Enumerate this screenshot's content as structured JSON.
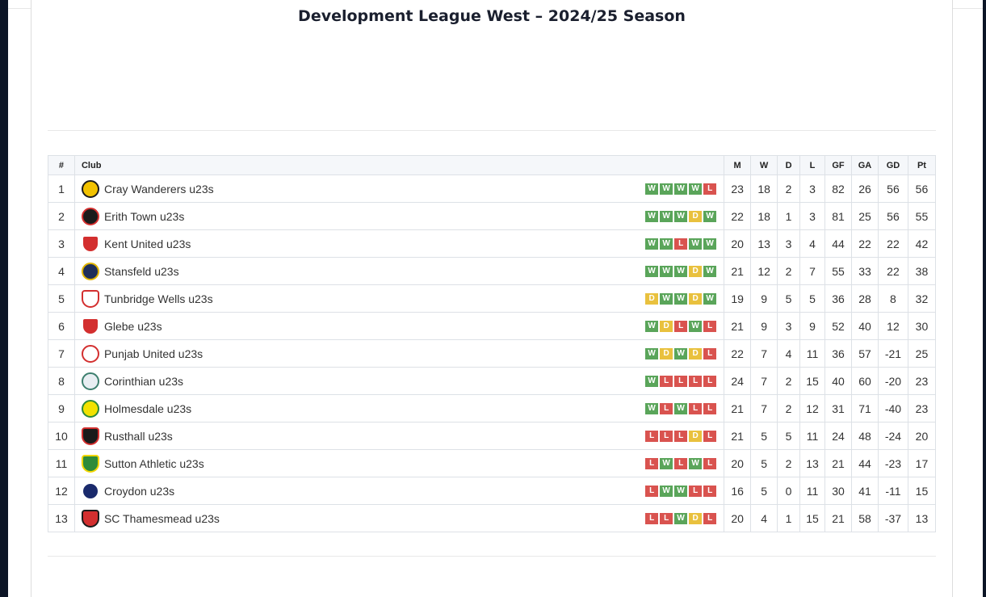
{
  "page": {
    "title": "Development League West – 2024/25 Season"
  },
  "table": {
    "headers": {
      "pos": "#",
      "club": "Club",
      "m": "M",
      "w": "W",
      "d": "D",
      "l": "L",
      "gf": "GF",
      "ga": "GA",
      "gd": "GD",
      "pt": "Pt"
    },
    "rows": [
      {
        "pos": "1",
        "club": "Cray Wanderers u23s",
        "form": [
          "W",
          "W",
          "W",
          "W",
          "L"
        ],
        "m": "23",
        "w": "18",
        "d": "2",
        "l": "3",
        "gf": "82",
        "ga": "26",
        "gd": "56",
        "pt": "56",
        "crest_color": "#f2c200",
        "crest_accent": "#1b1b1b"
      },
      {
        "pos": "2",
        "club": "Erith Town u23s",
        "form": [
          "W",
          "W",
          "W",
          "D",
          "W"
        ],
        "m": "22",
        "w": "18",
        "d": "1",
        "l": "3",
        "gf": "81",
        "ga": "25",
        "gd": "56",
        "pt": "55",
        "crest_color": "#1b1b1b",
        "crest_accent": "#d32f2f"
      },
      {
        "pos": "3",
        "club": "Kent United u23s",
        "form": [
          "W",
          "W",
          "L",
          "W",
          "W"
        ],
        "m": "20",
        "w": "13",
        "d": "3",
        "l": "4",
        "gf": "44",
        "ga": "22",
        "gd": "22",
        "pt": "42",
        "crest_color": "#d32f2f",
        "crest_accent": "#ffffff"
      },
      {
        "pos": "4",
        "club": "Stansfeld u23s",
        "form": [
          "W",
          "W",
          "W",
          "D",
          "W"
        ],
        "m": "21",
        "w": "12",
        "d": "2",
        "l": "7",
        "gf": "55",
        "ga": "33",
        "gd": "22",
        "pt": "38",
        "crest_color": "#1f2f5a",
        "crest_accent": "#e0b400"
      },
      {
        "pos": "5",
        "club": "Tunbridge Wells u23s",
        "form": [
          "D",
          "W",
          "W",
          "D",
          "W"
        ],
        "m": "19",
        "w": "9",
        "d": "5",
        "l": "5",
        "gf": "36",
        "ga": "28",
        "gd": "8",
        "pt": "32",
        "crest_color": "#ffffff",
        "crest_accent": "#d32f2f"
      },
      {
        "pos": "6",
        "club": "Glebe u23s",
        "form": [
          "W",
          "D",
          "L",
          "W",
          "L"
        ],
        "m": "21",
        "w": "9",
        "d": "3",
        "l": "9",
        "gf": "52",
        "ga": "40",
        "gd": "12",
        "pt": "30",
        "crest_color": "#d32f2f",
        "crest_accent": "#ffffff"
      },
      {
        "pos": "7",
        "club": "Punjab United u23s",
        "form": [
          "W",
          "D",
          "W",
          "D",
          "L"
        ],
        "m": "22",
        "w": "7",
        "d": "4",
        "l": "11",
        "gf": "36",
        "ga": "57",
        "gd": "-21",
        "pt": "25",
        "crest_color": "#ffffff",
        "crest_accent": "#d32f2f"
      },
      {
        "pos": "8",
        "club": "Corinthian u23s",
        "form": [
          "W",
          "L",
          "L",
          "L",
          "L"
        ],
        "m": "24",
        "w": "7",
        "d": "2",
        "l": "15",
        "gf": "40",
        "ga": "60",
        "gd": "-20",
        "pt": "23",
        "crest_color": "#e8eef2",
        "crest_accent": "#3d7f6e"
      },
      {
        "pos": "9",
        "club": "Holmesdale u23s",
        "form": [
          "W",
          "L",
          "W",
          "L",
          "L"
        ],
        "m": "21",
        "w": "7",
        "d": "2",
        "l": "12",
        "gf": "31",
        "ga": "71",
        "gd": "-40",
        "pt": "23",
        "crest_color": "#f2e200",
        "crest_accent": "#2e8b3a"
      },
      {
        "pos": "10",
        "club": "Rusthall u23s",
        "form": [
          "L",
          "L",
          "L",
          "D",
          "L"
        ],
        "m": "21",
        "w": "5",
        "d": "5",
        "l": "11",
        "gf": "24",
        "ga": "48",
        "gd": "-24",
        "pt": "20",
        "crest_color": "#1b1b1b",
        "crest_accent": "#d32f2f"
      },
      {
        "pos": "11",
        "club": "Sutton Athletic u23s",
        "form": [
          "L",
          "W",
          "L",
          "W",
          "L"
        ],
        "m": "20",
        "w": "5",
        "d": "2",
        "l": "13",
        "gf": "21",
        "ga": "44",
        "gd": "-23",
        "pt": "17",
        "crest_color": "#2e8b3a",
        "crest_accent": "#f2d600"
      },
      {
        "pos": "12",
        "club": "Croydon u23s",
        "form": [
          "L",
          "W",
          "W",
          "L",
          "L"
        ],
        "m": "16",
        "w": "5",
        "d": "0",
        "l": "11",
        "gf": "30",
        "ga": "41",
        "gd": "-11",
        "pt": "15",
        "crest_color": "#1a2a6c",
        "crest_accent": "#ffffff"
      },
      {
        "pos": "13",
        "club": "SC Thamesmead u23s",
        "form": [
          "L",
          "L",
          "W",
          "D",
          "L"
        ],
        "m": "20",
        "w": "4",
        "d": "1",
        "l": "15",
        "gf": "21",
        "ga": "58",
        "gd": "-37",
        "pt": "13",
        "crest_color": "#d32f2f",
        "crest_accent": "#1b1b1b"
      }
    ]
  },
  "colors": {
    "win": "#5aa55a",
    "draw": "#e9c13e",
    "loss": "#d9534f",
    "frame": "#0c1526"
  }
}
